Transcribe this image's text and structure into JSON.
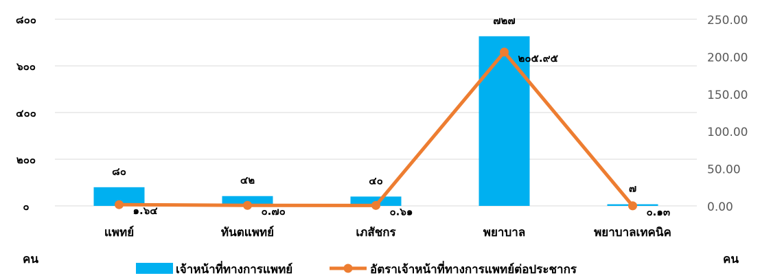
{
  "chart_data": {
    "type": "bar",
    "categories": [
      "แพทย์",
      "ทันตแพทย์",
      "เภสัชกร",
      "พยาบาล",
      "พยาบาลเทคนิค"
    ],
    "series": [
      {
        "name": "เจ้าหน้าที่ทางการแพทย์",
        "type": "bar",
        "axis": "left",
        "color": "#00B0F0",
        "values": [
          80,
          42,
          40,
          727,
          7
        ],
        "labels": [
          "๘๐",
          "๔๒",
          "๔๐",
          "๗๒๗",
          "๗"
        ]
      },
      {
        "name": "อัตราเจ้าหน้าที่ทางการแพทย์ต่อประชากร",
        "type": "line",
        "axis": "right",
        "color": "#ED7D31",
        "values": [
          1.64,
          0.7,
          0.61,
          205.95,
          0.13
        ],
        "labels": [
          "๑.๖๔",
          "๐.๗๐",
          "๐.๖๑",
          "๒๐๕.๙๕",
          "๐.๑๓"
        ]
      }
    ],
    "y_left": {
      "unit_label": "คน",
      "range": [
        0,
        800
      ],
      "ticks": [
        0,
        200,
        400,
        600,
        800
      ],
      "tick_labels": [
        "๐",
        "๒๐๐",
        "๔๐๐",
        "๖๐๐",
        "๘๐๐"
      ]
    },
    "y_right": {
      "unit_label": "คน",
      "range": [
        0,
        250
      ],
      "ticks": [
        0,
        50,
        100,
        150,
        200,
        250
      ],
      "tick_labels": [
        "0.00",
        "50.00",
        "100.00",
        "150.00",
        "200.00",
        "250.00"
      ]
    },
    "grid": true,
    "legend_position": "bottom"
  }
}
